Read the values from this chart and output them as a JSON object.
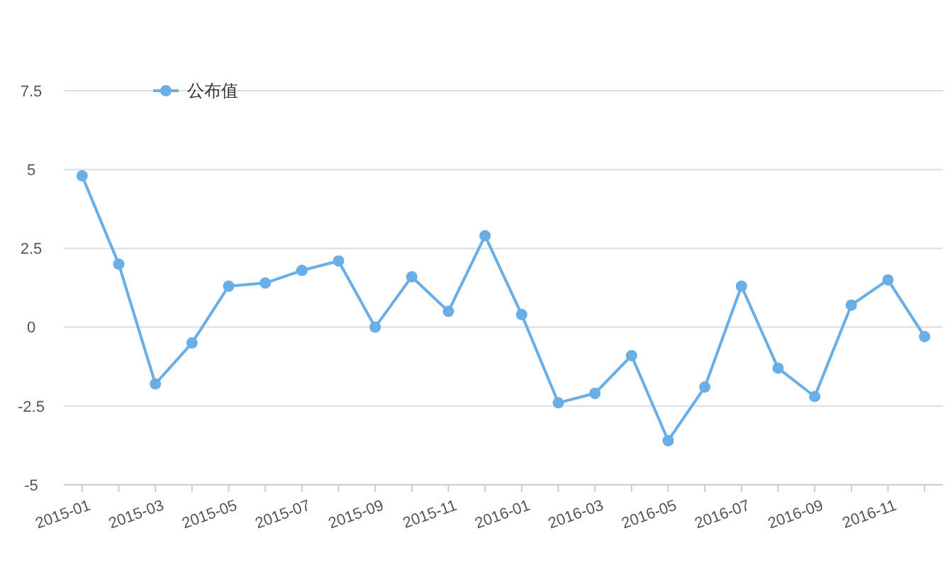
{
  "chart_data": {
    "type": "line",
    "categories": [
      "2015-01",
      null,
      "2015-03",
      null,
      "2015-05",
      null,
      "2015-07",
      null,
      "2015-09",
      null,
      "2015-11",
      null,
      "2016-01",
      null,
      "2016-03",
      null,
      "2016-05",
      null,
      "2016-07",
      null,
      "2016-09",
      null,
      "2016-11",
      null
    ],
    "series": [
      {
        "name": "公布值",
        "color": "#6aaee8",
        "values": [
          4.8,
          2.0,
          -1.8,
          -0.5,
          1.3,
          1.4,
          1.8,
          2.1,
          0,
          1.6,
          0.5,
          2.9,
          0.4,
          -2.4,
          -2.1,
          -0.9,
          -3.6,
          -1.9,
          1.3,
          -1.3,
          -2.2,
          0.7,
          1.5,
          -0.3
        ]
      }
    ],
    "ylim": [
      -5,
      7.5
    ],
    "yticks": [
      -5,
      -2.5,
      0,
      2.5,
      5,
      7.5
    ],
    "grid": "y",
    "legend": "top left",
    "marker": "circle",
    "line_style": "solid"
  }
}
